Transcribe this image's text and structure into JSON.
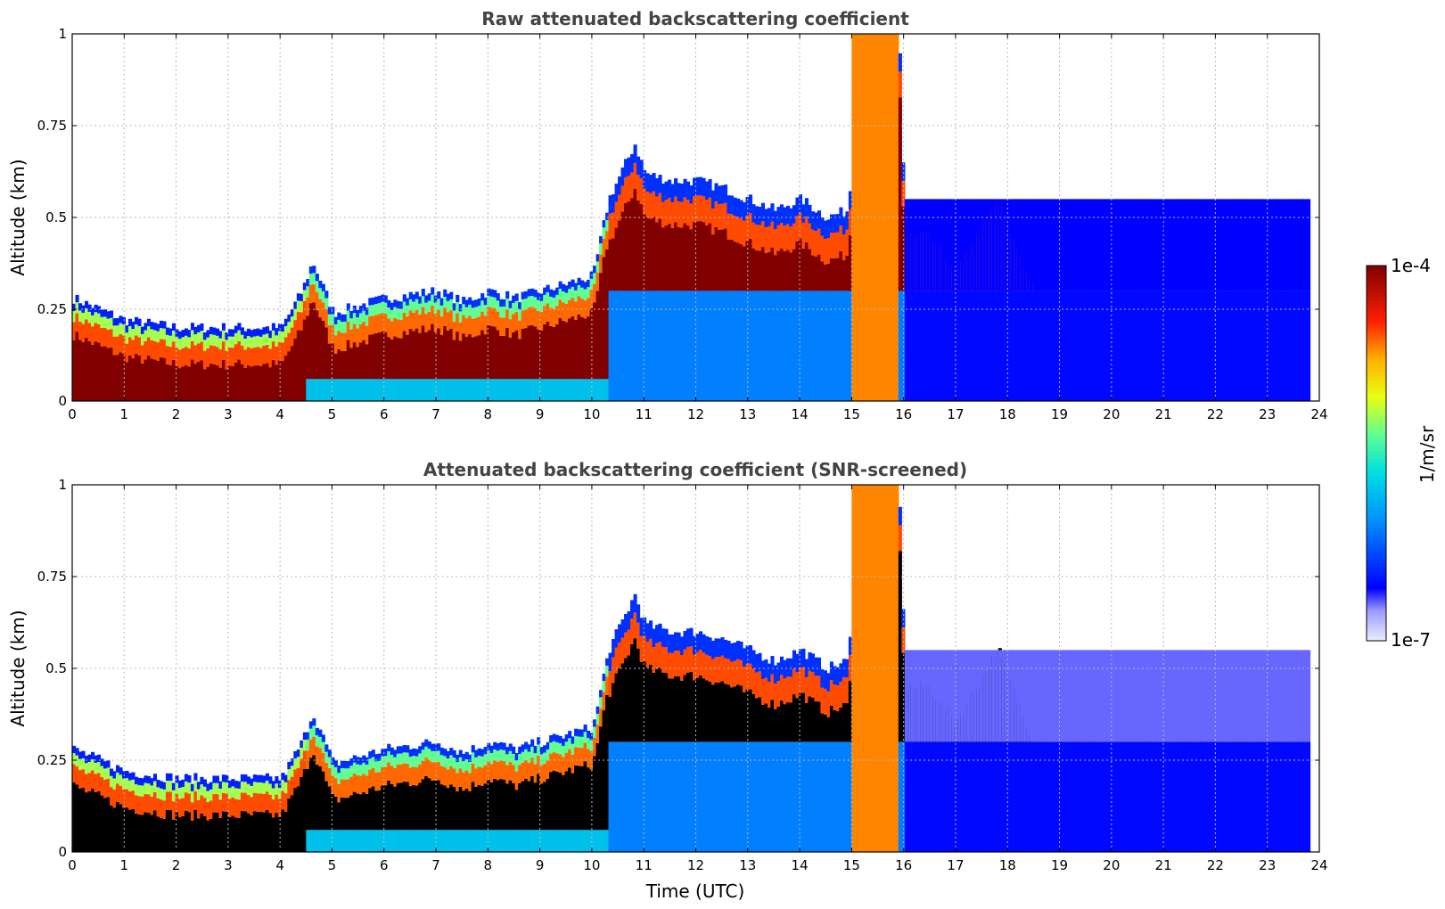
{
  "chart_data": [
    {
      "type": "heatmap",
      "title": "Raw attenuated backscattering coefficient",
      "xlabel": "",
      "ylabel": "Altitude (km)",
      "xlim": [
        0,
        24
      ],
      "ylim": [
        0,
        1
      ],
      "x_ticks": [
        "0",
        "1",
        "2",
        "3",
        "4",
        "5",
        "6",
        "7",
        "8",
        "9",
        "10",
        "11",
        "12",
        "13",
        "14",
        "15",
        "16",
        "17",
        "18",
        "19",
        "20",
        "21",
        "22",
        "23",
        "24"
      ],
      "y_ticks": [
        "0",
        "0.25",
        "0.5",
        "0.75",
        "1"
      ],
      "grid": true,
      "screened": false,
      "boundary_layer_top_km": [
        [
          0,
          0.28
        ],
        [
          1,
          0.22
        ],
        [
          2,
          0.2
        ],
        [
          3,
          0.2
        ],
        [
          4,
          0.2
        ],
        [
          4.4,
          0.3
        ],
        [
          4.6,
          0.38
        ],
        [
          5,
          0.24
        ],
        [
          5.5,
          0.26
        ],
        [
          6,
          0.28
        ],
        [
          6.5,
          0.29
        ],
        [
          7,
          0.3
        ],
        [
          7.5,
          0.27
        ],
        [
          8,
          0.3
        ],
        [
          8.5,
          0.28
        ],
        [
          9,
          0.3
        ],
        [
          9.5,
          0.32
        ],
        [
          10,
          0.34
        ],
        [
          10.3,
          0.55
        ],
        [
          10.8,
          0.7
        ],
        [
          11,
          0.62
        ],
        [
          11.5,
          0.6
        ],
        [
          12,
          0.6
        ],
        [
          12.5,
          0.58
        ],
        [
          13,
          0.55
        ],
        [
          13.5,
          0.52
        ],
        [
          14,
          0.55
        ],
        [
          14.5,
          0.5
        ],
        [
          14.9,
          0.52
        ],
        [
          15.2,
          0.95
        ],
        [
          15.9,
          0.95
        ],
        [
          16,
          0.45
        ],
        [
          16.5,
          0.45
        ],
        [
          17,
          0.35
        ],
        [
          17.8,
          0.55
        ],
        [
          18.5,
          0.3
        ]
      ]
    },
    {
      "type": "heatmap",
      "title": "Attenuated backscattering coefficient (SNR-screened)",
      "xlabel": "Time (UTC)",
      "ylabel": "Altitude (km)",
      "xlim": [
        0,
        24
      ],
      "ylim": [
        0,
        1
      ],
      "x_ticks": [
        "0",
        "1",
        "2",
        "3",
        "4",
        "5",
        "6",
        "7",
        "8",
        "9",
        "10",
        "11",
        "12",
        "13",
        "14",
        "15",
        "16",
        "17",
        "18",
        "19",
        "20",
        "21",
        "22",
        "23",
        "24"
      ],
      "y_ticks": [
        "0",
        "0.25",
        "0.5",
        "0.75",
        "1"
      ],
      "grid": true,
      "screened": true,
      "boundary_layer_top_km": [
        [
          0,
          0.28
        ],
        [
          1,
          0.22
        ],
        [
          2,
          0.2
        ],
        [
          3,
          0.2
        ],
        [
          4,
          0.2
        ],
        [
          4.4,
          0.3
        ],
        [
          4.6,
          0.38
        ],
        [
          5,
          0.24
        ],
        [
          5.5,
          0.26
        ],
        [
          6,
          0.28
        ],
        [
          6.5,
          0.29
        ],
        [
          7,
          0.3
        ],
        [
          7.5,
          0.27
        ],
        [
          8,
          0.3
        ],
        [
          8.5,
          0.28
        ],
        [
          9,
          0.3
        ],
        [
          9.5,
          0.32
        ],
        [
          10,
          0.34
        ],
        [
          10.3,
          0.55
        ],
        [
          10.8,
          0.7
        ],
        [
          11,
          0.62
        ],
        [
          11.5,
          0.6
        ],
        [
          12,
          0.6
        ],
        [
          12.5,
          0.58
        ],
        [
          13,
          0.55
        ],
        [
          13.5,
          0.52
        ],
        [
          14,
          0.55
        ],
        [
          14.5,
          0.5
        ],
        [
          14.9,
          0.52
        ],
        [
          15.2,
          0.95
        ],
        [
          15.9,
          0.95
        ],
        [
          16,
          0.45
        ],
        [
          16.5,
          0.45
        ],
        [
          17,
          0.35
        ],
        [
          17.8,
          0.55
        ],
        [
          18.5,
          0.3
        ]
      ]
    }
  ],
  "colorbar": {
    "label": "1/m/sr",
    "max_label": "1e-4",
    "min_label": "1e-7",
    "colormap": "jet",
    "scale": "log",
    "range": [
      1e-07,
      0.0001
    ]
  },
  "colors": {
    "title": "#444444",
    "grid": "#bbbbbb",
    "saturated_screened": "#000000"
  }
}
